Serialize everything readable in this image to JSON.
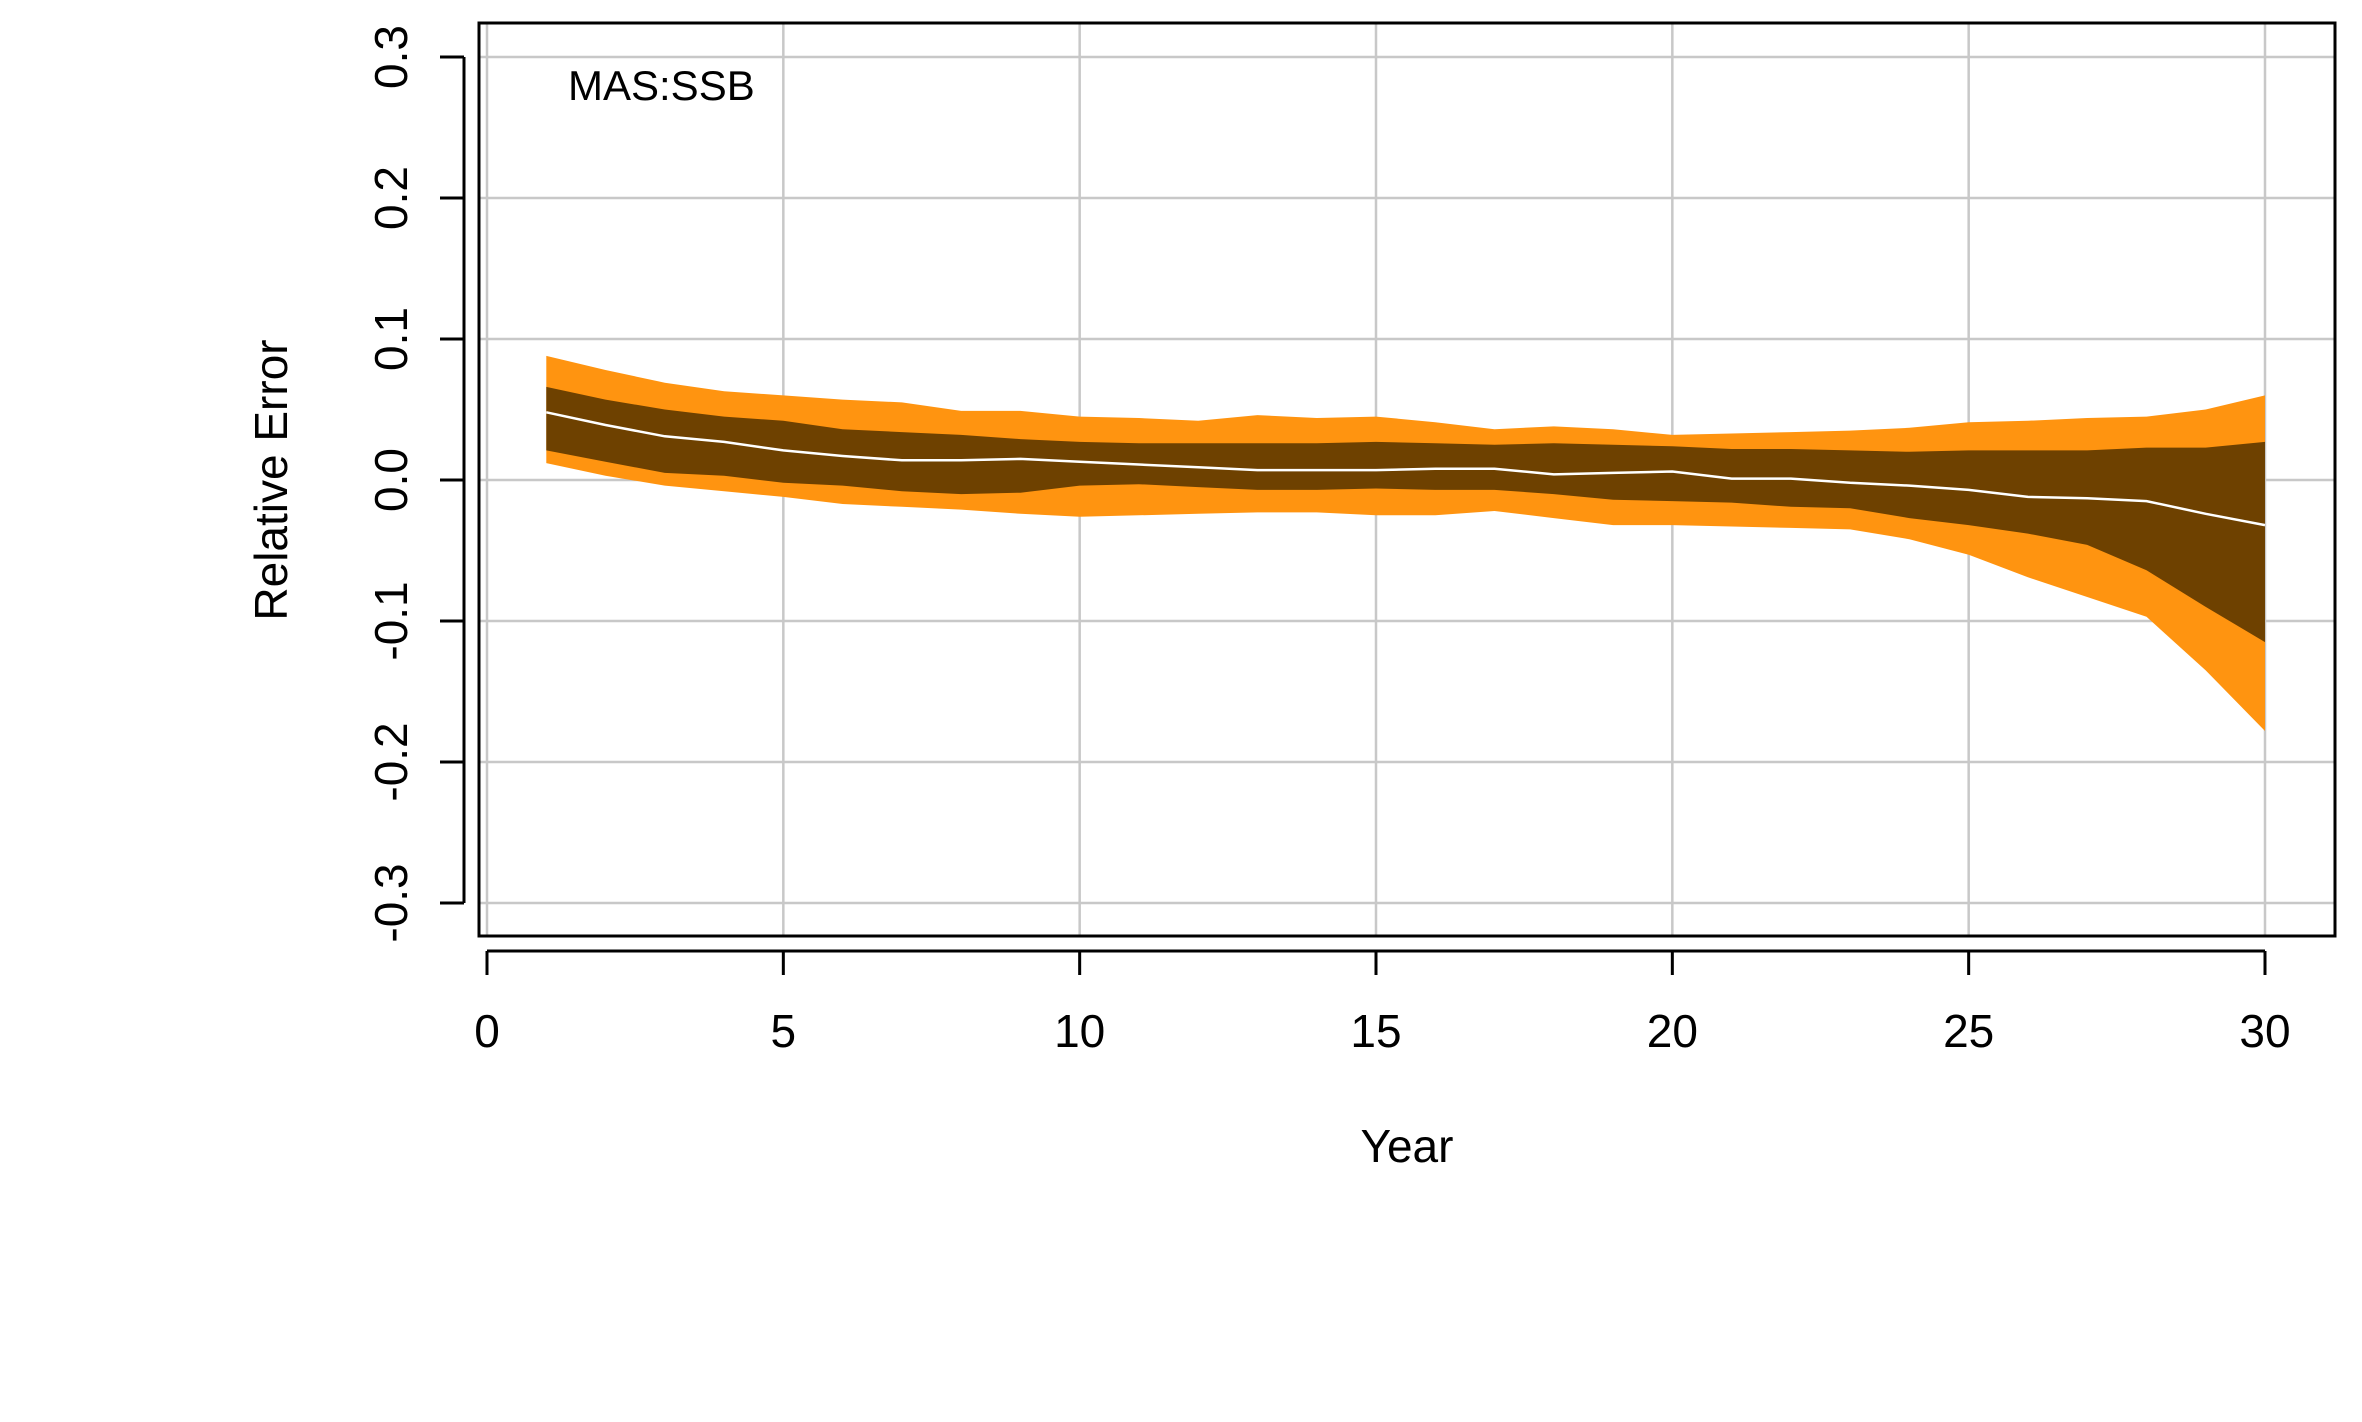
{
  "chart_data": {
    "type": "area",
    "panel_label": "MAS:SSB",
    "xlabel": "Year",
    "ylabel": "Relative Error",
    "xlim": [
      0,
      30
    ],
    "ylim": [
      -0.3,
      0.3
    ],
    "x_ticks": [
      0,
      5,
      10,
      15,
      20,
      25,
      30
    ],
    "y_ticks": [
      -0.3,
      -0.2,
      -0.1,
      0.0,
      0.1,
      0.2,
      0.3
    ],
    "x_tick_labels": [
      "0",
      "5",
      "10",
      "15",
      "20",
      "25",
      "30"
    ],
    "y_tick_labels": [
      "-0.3",
      "-0.2",
      "-0.1",
      "0.0",
      "0.1",
      "0.2",
      "0.3"
    ],
    "grid": true,
    "x": [
      1,
      2,
      3,
      4,
      5,
      6,
      7,
      8,
      9,
      10,
      11,
      12,
      13,
      14,
      15,
      16,
      17,
      18,
      19,
      20,
      21,
      22,
      23,
      24,
      25,
      26,
      27,
      28,
      29,
      30
    ],
    "bands": [
      {
        "role": "outer",
        "color": "#ff9410",
        "upper": [
          0.088,
          0.078,
          0.069,
          0.063,
          0.06,
          0.057,
          0.055,
          0.049,
          0.049,
          0.045,
          0.044,
          0.042,
          0.046,
          0.044,
          0.045,
          0.041,
          0.036,
          0.038,
          0.036,
          0.032,
          0.033,
          0.034,
          0.035,
          0.037,
          0.041,
          0.042,
          0.044,
          0.045,
          0.05,
          0.06
        ],
        "lower": [
          0.012,
          0.003,
          -0.004,
          -0.008,
          -0.012,
          -0.017,
          -0.019,
          -0.021,
          -0.024,
          -0.026,
          -0.025,
          -0.024,
          -0.023,
          -0.023,
          -0.025,
          -0.025,
          -0.022,
          -0.027,
          -0.032,
          -0.032,
          -0.033,
          -0.034,
          -0.035,
          -0.042,
          -0.053,
          -0.069,
          -0.083,
          -0.097,
          -0.135,
          -0.178
        ]
      },
      {
        "role": "inner",
        "color": "#6e4100",
        "upper": [
          0.066,
          0.057,
          0.05,
          0.045,
          0.042,
          0.036,
          0.034,
          0.032,
          0.029,
          0.027,
          0.026,
          0.026,
          0.026,
          0.026,
          0.027,
          0.026,
          0.025,
          0.026,
          0.025,
          0.024,
          0.022,
          0.022,
          0.021,
          0.02,
          0.021,
          0.021,
          0.021,
          0.023,
          0.023,
          0.027
        ],
        "lower": [
          0.021,
          0.013,
          0.005,
          0.003,
          -0.002,
          -0.004,
          -0.008,
          -0.01,
          -0.009,
          -0.004,
          -0.003,
          -0.005,
          -0.007,
          -0.007,
          -0.006,
          -0.007,
          -0.007,
          -0.01,
          -0.014,
          -0.015,
          -0.016,
          -0.019,
          -0.02,
          -0.027,
          -0.032,
          -0.038,
          -0.046,
          -0.064,
          -0.09,
          -0.115
        ]
      }
    ],
    "series": [
      {
        "role": "median",
        "color": "#ffffff",
        "values": [
          0.048,
          0.039,
          0.031,
          0.027,
          0.021,
          0.017,
          0.014,
          0.014,
          0.015,
          0.013,
          0.011,
          0.009,
          0.007,
          0.007,
          0.007,
          0.008,
          0.008,
          0.004,
          0.005,
          0.006,
          0.001,
          0.001,
          -0.002,
          -0.004,
          -0.007,
          -0.012,
          -0.013,
          -0.015,
          -0.024,
          -0.032
        ]
      }
    ]
  }
}
